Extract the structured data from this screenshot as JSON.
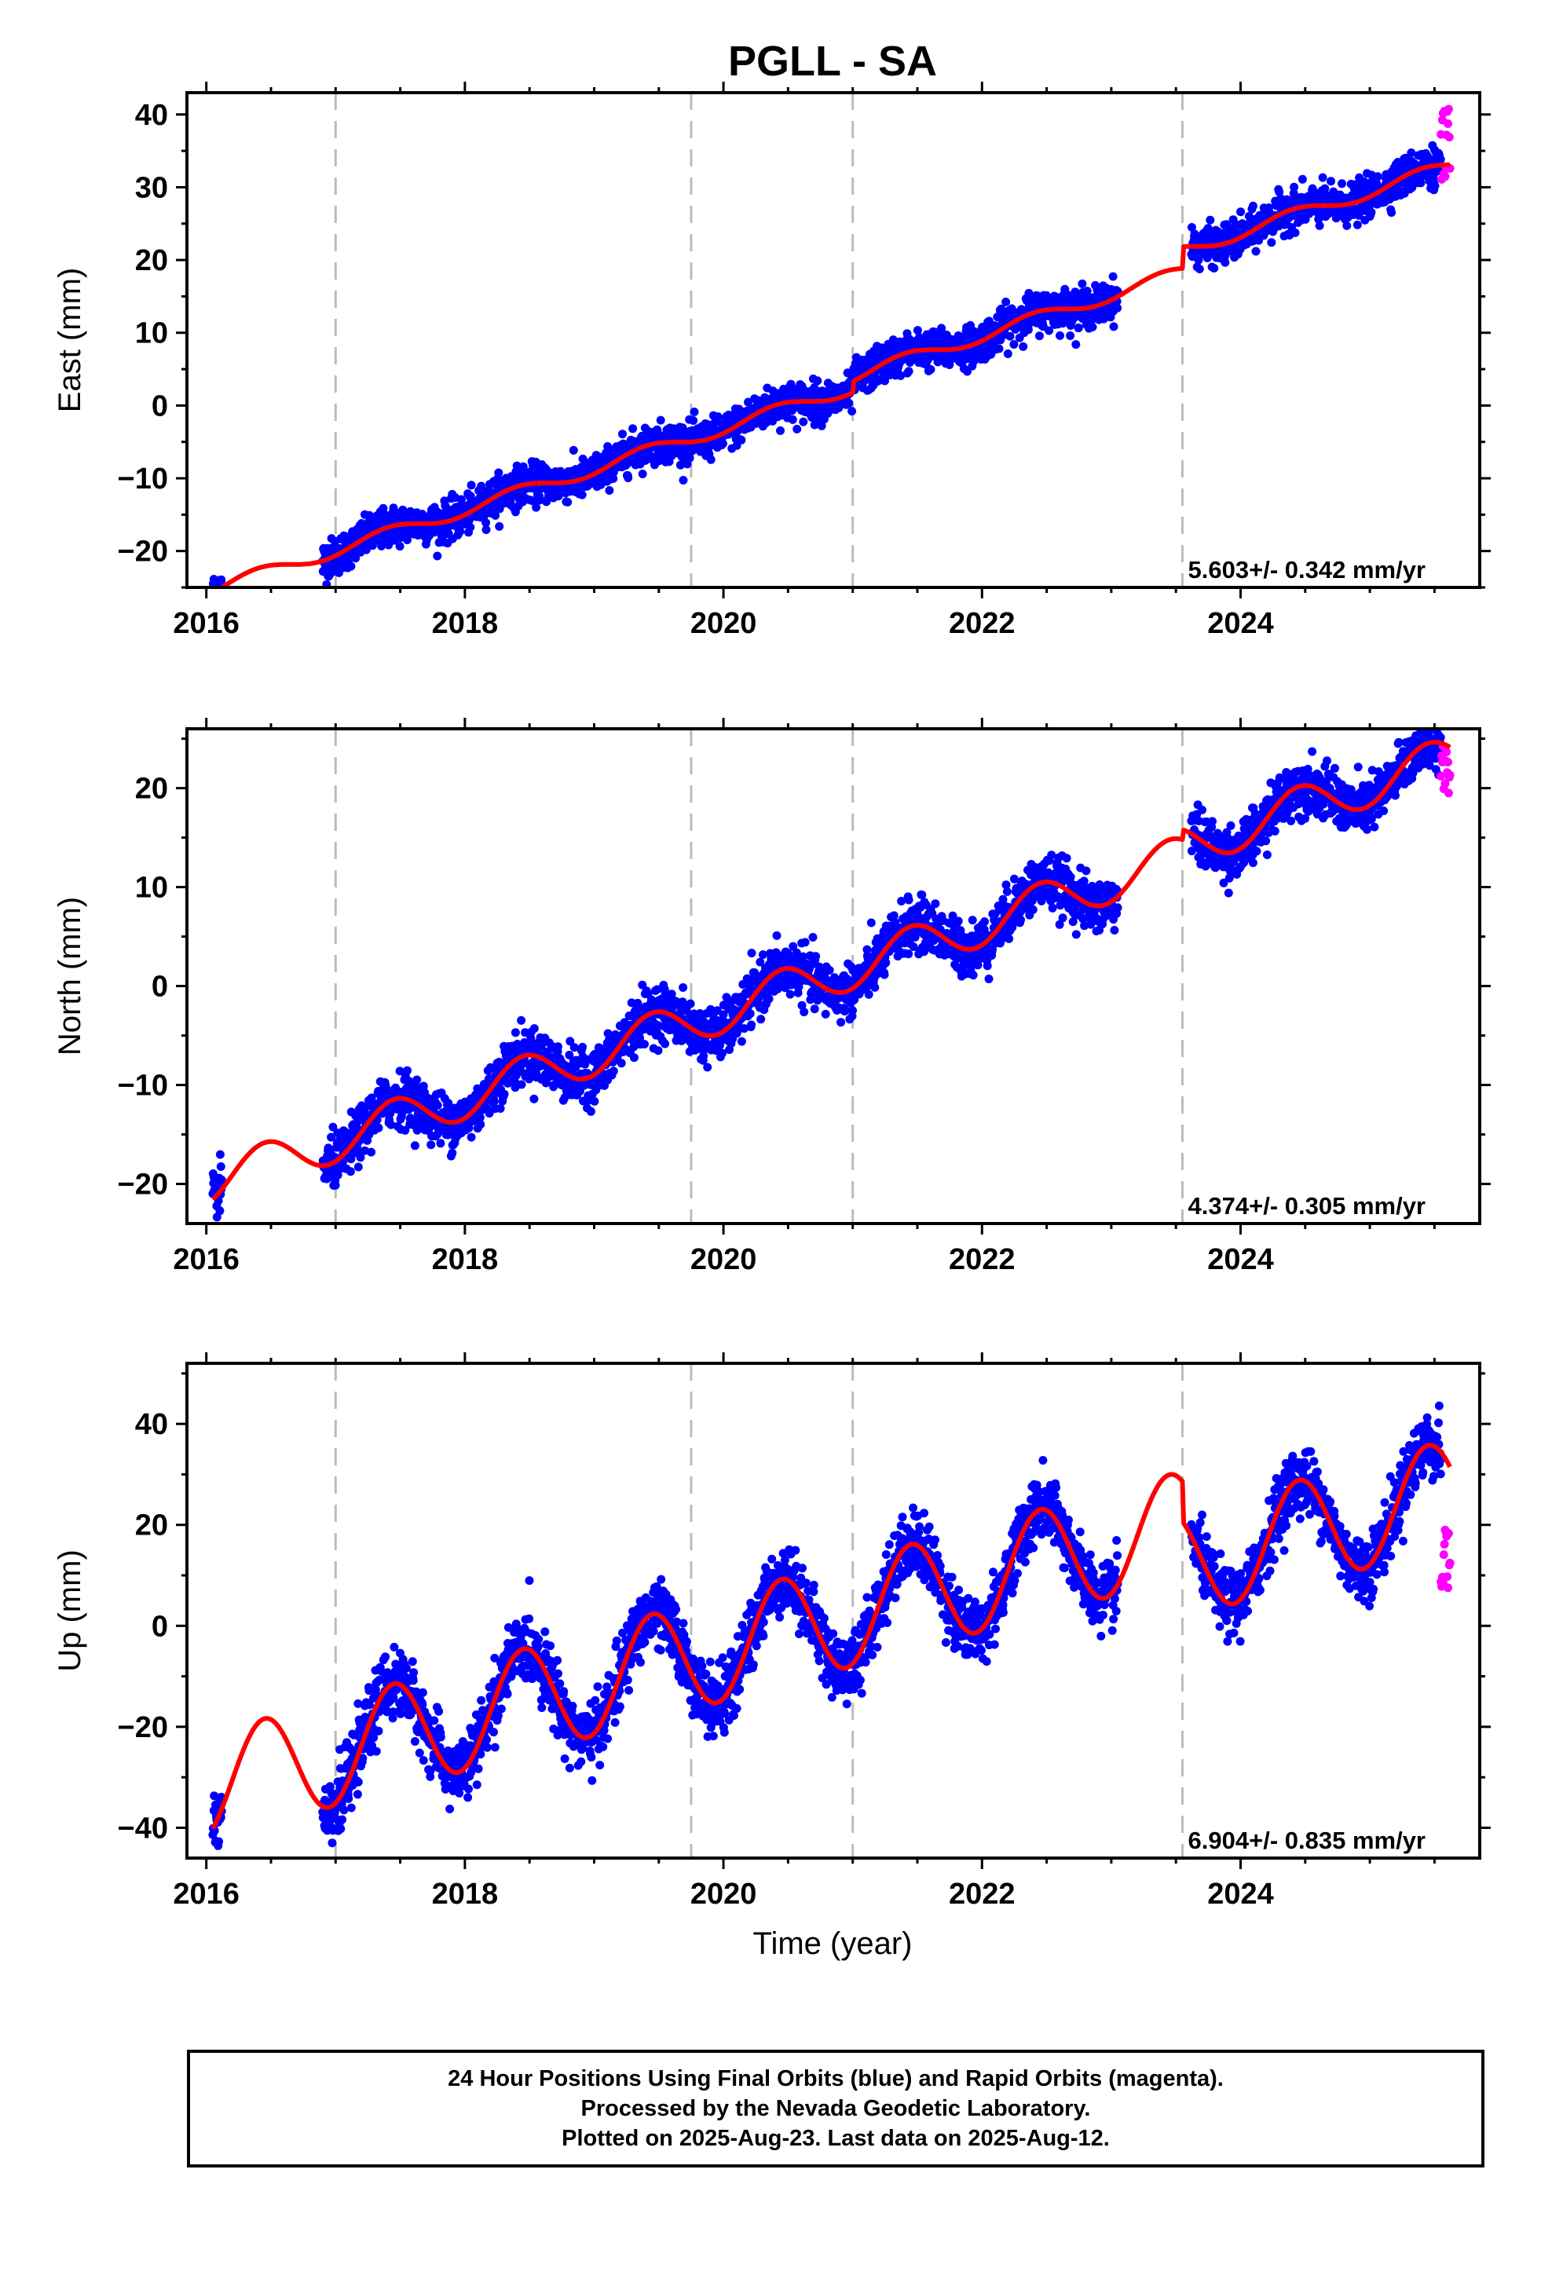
{
  "title": "PGLL - SA",
  "xlabel": "Time (year)",
  "footer": {
    "line1": "24 Hour Positions Using Final Orbits (blue) and Rapid Orbits (magenta).",
    "line2": "Processed by the Nevada Geodetic Laboratory.",
    "line3": "Plotted on 2025-Aug-23. Last data on 2025-Aug-12."
  },
  "colors": {
    "final": "#0000ff",
    "rapid": "#ff00ff",
    "model": "#ff0000",
    "events": "#bbbbbb"
  },
  "chart_data": [
    {
      "type": "scatter",
      "name": "east",
      "ylabel": "East (mm)",
      "velocity": "5.603+/- 0.342 mm/yr",
      "xlim": [
        2015.85,
        2025.85
      ],
      "ylim": [
        -25,
        43
      ],
      "x_ticks": [
        2016,
        2018,
        2020,
        2022,
        2024
      ],
      "y_ticks": [
        -20,
        -10,
        0,
        10,
        20,
        30,
        40
      ],
      "y_tick_labels": [
        "−20",
        "−10",
        "0",
        "10",
        "20",
        "30",
        "40"
      ],
      "events": [
        2017.0,
        2019.75,
        2021.0,
        2023.55
      ],
      "model": {
        "rate": 5.603,
        "t0": 2016.0,
        "offset": -25.5,
        "annual_amp": 0.9,
        "annual_phase": 0.3,
        "steps": [
          [
            2021.0,
            1.5
          ],
          [
            2023.55,
            3.0
          ]
        ]
      },
      "scatter_sd": 1.3,
      "rapid_y_range": [
        31,
        41
      ],
      "start": 2016.05,
      "data_segments": [
        [
          2016.05,
          2016.12
        ],
        [
          2016.9,
          2023.05
        ],
        [
          2023.62,
          2025.55
        ]
      ],
      "rapid_segment": [
        2025.55,
        2025.62
      ]
    },
    {
      "type": "scatter",
      "name": "north",
      "ylabel": "North (mm)",
      "velocity": "4.374+/- 0.305 mm/yr",
      "xlim": [
        2015.85,
        2025.85
      ],
      "ylim": [
        -24,
        26
      ],
      "x_ticks": [
        2016,
        2018,
        2020,
        2022,
        2024
      ],
      "y_ticks": [
        -20,
        -10,
        0,
        10,
        20
      ],
      "y_tick_labels": [
        "−20",
        "−10",
        "0",
        "10",
        "20"
      ],
      "events": [
        2017.0,
        2019.75,
        2021.0,
        2023.55
      ],
      "model": {
        "rate": 4.374,
        "t0": 2016.0,
        "offset": -20.0,
        "annual_amp": 2.2,
        "annual_phase": 0.0,
        "steps": [
          [
            2023.55,
            1.0
          ]
        ]
      },
      "scatter_sd": 1.3,
      "rapid_y_range": [
        19,
        25
      ],
      "start": 2016.05,
      "data_segments": [
        [
          2016.05,
          2016.12
        ],
        [
          2016.9,
          2023.05
        ],
        [
          2023.62,
          2025.55
        ]
      ],
      "rapid_segment": [
        2025.55,
        2025.62
      ]
    },
    {
      "type": "scatter",
      "name": "up",
      "ylabel": "Up (mm)",
      "velocity": "6.904+/- 0.835 mm/yr",
      "xlim": [
        2015.85,
        2025.85
      ],
      "ylim": [
        -46,
        52
      ],
      "x_ticks": [
        2016,
        2018,
        2020,
        2022,
        2024
      ],
      "y_ticks": [
        -40,
        -20,
        0,
        20,
        40
      ],
      "y_tick_labels": [
        "−40",
        "−20",
        "0",
        "20",
        "40"
      ],
      "events": [
        2017.0,
        2019.75,
        2021.0,
        2023.55
      ],
      "model": {
        "rate": 6.904,
        "t0": 2016.0,
        "offset": -32.0,
        "annual_amp": 10.5,
        "annual_phase": 0.0,
        "steps": [
          [
            2023.55,
            -8.0
          ]
        ]
      },
      "scatter_sd": 3.2,
      "rapid_y_range": [
        0,
        19
      ],
      "start": 2016.05,
      "data_segments": [
        [
          2016.05,
          2016.12
        ],
        [
          2016.9,
          2023.05
        ],
        [
          2023.62,
          2025.55
        ]
      ],
      "rapid_segment": [
        2025.55,
        2025.62
      ]
    }
  ]
}
